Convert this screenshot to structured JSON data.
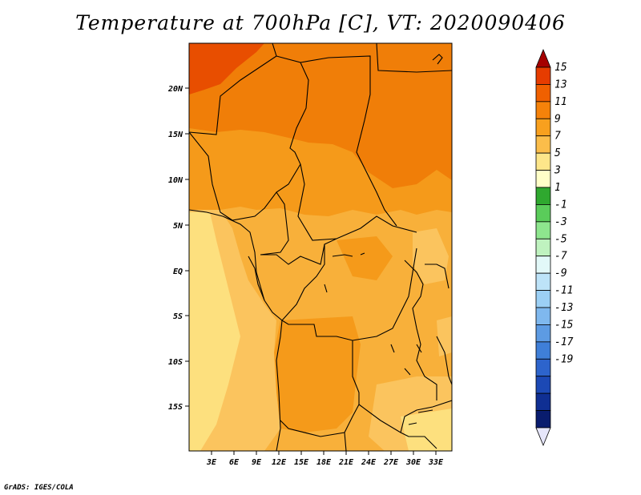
{
  "title": "Temperature at 700hPa [C], VT: 2020090406",
  "credit": "GrADS: IGES/COLA",
  "map": {
    "lat_labels": [
      "20N",
      "15N",
      "10N",
      "5N",
      "EQ",
      "5S",
      "10S",
      "15S"
    ],
    "lon_labels": [
      "3E",
      "6E",
      "9E",
      "12E",
      "15E",
      "18E",
      "21E",
      "24E",
      "27E",
      "30E",
      "33E"
    ]
  },
  "colorbar": {
    "labels": [
      "15",
      "13",
      "11",
      "9",
      "7",
      "5",
      "3",
      "1",
      "-1",
      "-3",
      "-5",
      "-7",
      "-9",
      "-11",
      "-13",
      "-15",
      "-17",
      "-19"
    ],
    "colors": [
      "#a50000",
      "#e63c00",
      "#f06000",
      "#f5820a",
      "#f8a01e",
      "#fbbd4a",
      "#fde68a",
      "#ffffc8",
      "#2fa82f",
      "#5acc5a",
      "#8ee68e",
      "#bff2bf",
      "#e2f8f8",
      "#bde3f8",
      "#9cd0f5",
      "#7fb8ee",
      "#5d9be3",
      "#3f7fd8",
      "#2d64cc",
      "#1c49b5",
      "#0f2f93",
      "#091c6e",
      "#e6e6fa"
    ]
  }
}
